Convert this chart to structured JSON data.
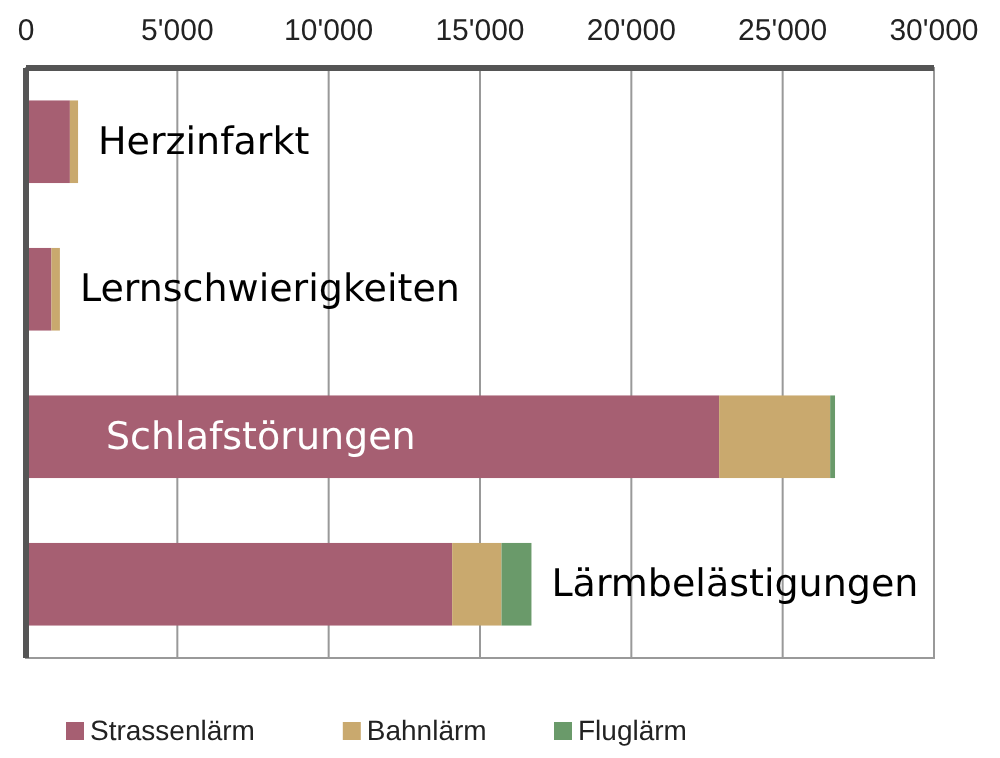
{
  "chart_data": {
    "type": "bar",
    "orientation": "horizontal",
    "stacked": true,
    "categories": [
      "Herzinfarkt",
      "Lernschwierigkeiten",
      "Schlafstörungen",
      "Lärmbelästigungen"
    ],
    "series": [
      {
        "name": "Strassenlärm",
        "color": "#a65f72",
        "values": [
          1450,
          840,
          22900,
          14080
        ]
      },
      {
        "name": "Bahnlärm",
        "color": "#c9a96e",
        "values": [
          270,
          280,
          3670,
          1630
        ]
      },
      {
        "name": "Fluglärm",
        "color": "#6a9a6a",
        "values": [
          0,
          0,
          160,
          990
        ]
      }
    ],
    "xlim": [
      0,
      30000
    ],
    "xticks": [
      {
        "value": 0,
        "label": "0"
      },
      {
        "value": 5000,
        "label": "5'000"
      },
      {
        "value": 10000,
        "label": "10'000"
      },
      {
        "value": 15000,
        "label": "15'000"
      },
      {
        "value": 20000,
        "label": "20'000"
      },
      {
        "value": 25000,
        "label": "25'000"
      },
      {
        "value": 30000,
        "label": "30'000"
      }
    ],
    "grid": "x",
    "legend": "bottom"
  }
}
